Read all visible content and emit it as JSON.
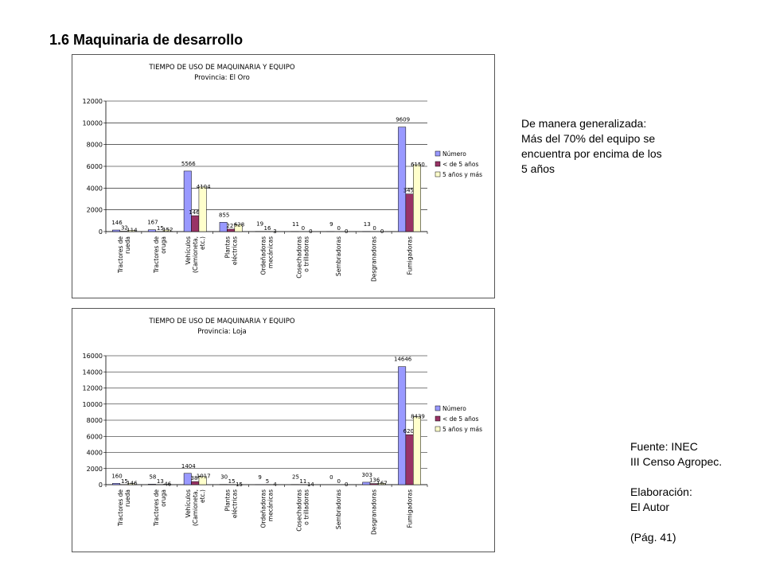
{
  "slide": {
    "title": "1.6 Maquinaria de desarrollo"
  },
  "note": {
    "lines": [
      "De manera generalizada:",
      "Más del 70% del equipo se",
      "encuentra por encima de los",
      "5 años"
    ]
  },
  "source": {
    "fuente": [
      "Fuente: INEC",
      "III Censo Agropec."
    ],
    "elaboracion": [
      "Elaboración:",
      "El Autor"
    ],
    "page": "(Pág. 41)"
  },
  "colors": {
    "numero": "#9999ff",
    "menos5": "#993366",
    "mas5": "#ffffcc",
    "grid": "#000000"
  },
  "chart_data": [
    {
      "type": "bar",
      "title": "TIEMPO DE USO DE MAQUINARIA Y EQUIPO",
      "subtitle": "Provincia: El Oro",
      "categories": [
        [
          "Tractores de",
          "rueda"
        ],
        [
          "Tractores de",
          "oruga"
        ],
        [
          "Vehículos",
          "(Camioneta,",
          "etc.)"
        ],
        [
          "Plantas",
          "eléctricas"
        ],
        [
          "Ordeñadoras",
          "mecánicas"
        ],
        [
          "Cosechadoras",
          "o trilladoras"
        ],
        [
          "Sembradoras"
        ],
        [
          "Desgranadoras"
        ],
        [
          "Fumigadoras"
        ]
      ],
      "series": [
        {
          "name": "Número",
          "values": [
            146,
            167,
            5566,
            855,
            19,
            11,
            9,
            13,
            9609
          ]
        },
        {
          "name": "< de 5 años",
          "values": [
            32,
            15,
            1462,
            227,
            16,
            0,
            0,
            0,
            3459
          ]
        },
        {
          "name": "5 años y más",
          "values": [
            114,
            152,
            4104,
            628,
            3,
            0,
            0,
            0,
            6150
          ]
        }
      ],
      "ylim": [
        0,
        12000
      ],
      "yticks": [
        0,
        2000,
        4000,
        6000,
        8000,
        10000,
        12000
      ],
      "grid": true,
      "legend": "right"
    },
    {
      "type": "bar",
      "title": "TIEMPO DE USO DE MAQUINARIA Y EQUIPO",
      "subtitle": "Provincia: Loja",
      "categories": [
        [
          "Tractores de",
          "rueda"
        ],
        [
          "Tractores de",
          "oruga"
        ],
        [
          "Vehículos",
          "(Camioneta,",
          "etc.)"
        ],
        [
          "Plantas",
          "eléctricas"
        ],
        [
          "Ordeñadoras",
          "mecánicas"
        ],
        [
          "Cosechadoras",
          "o trilladoras"
        ],
        [
          "Sembradoras"
        ],
        [
          "Desgranadoras"
        ],
        [
          "Fumigadoras"
        ]
      ],
      "series": [
        {
          "name": "Número",
          "values": [
            160,
            58,
            1404,
            30,
            9,
            25,
            0,
            303,
            14646
          ]
        },
        {
          "name": "< de 5 años",
          "values": [
            15,
            13,
            387,
            15,
            5,
            11,
            0,
            136,
            6207
          ]
        },
        {
          "name": "5 años y más",
          "values": [
            146,
            46,
            1017,
            15,
            4,
            14,
            0,
            167,
            8439
          ]
        }
      ],
      "ylim": [
        0,
        16000
      ],
      "yticks": [
        0,
        2000,
        4000,
        6000,
        8000,
        10000,
        12000,
        14000,
        16000
      ],
      "grid": true,
      "legend": "right"
    }
  ]
}
